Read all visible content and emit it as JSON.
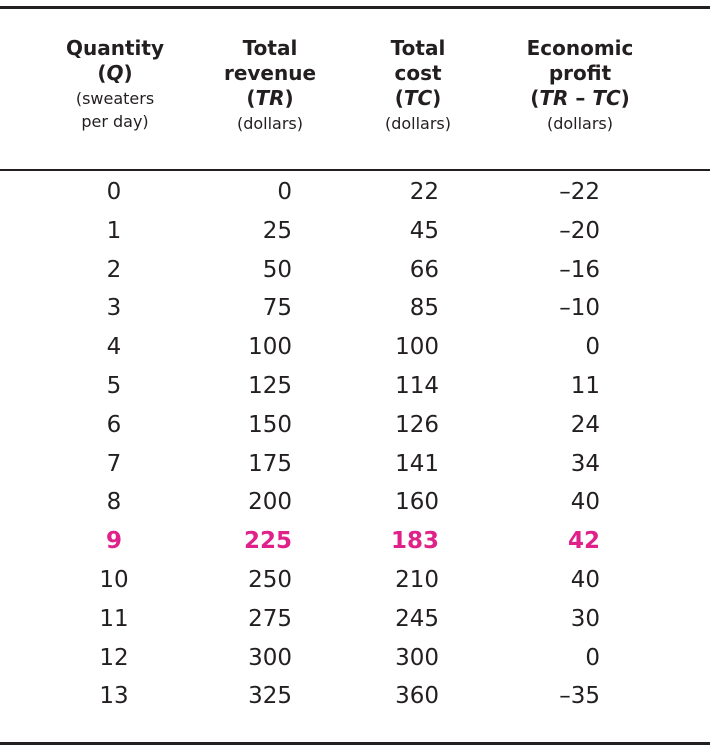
{
  "headers": {
    "quantity": {
      "line1": "Quantity",
      "line2_open": "(",
      "line2_var": "Q",
      "line2_close": ")",
      "line3": "(sweaters",
      "line4": "per day)"
    },
    "total_revenue": {
      "line1": "Total",
      "line2": "revenue",
      "line3_open": "(",
      "line3_var": "TR",
      "line3_close": ")",
      "line4": "(dollars)"
    },
    "total_cost": {
      "line1": "Total",
      "line2": "cost",
      "line3_open": "(",
      "line3_var": "TC",
      "line3_close": ")",
      "line4": "(dollars)"
    },
    "economic_profit": {
      "line1": "Economic",
      "line2": "profit",
      "line3_open": "(",
      "line3_var1": "TR",
      "line3_minus": " – ",
      "line3_var2": "TC",
      "line3_close": ")",
      "line4": "(dollars)"
    }
  },
  "rows": [
    {
      "q": "0",
      "tr": "0",
      "tc": "22",
      "profit": "–22"
    },
    {
      "q": "1",
      "tr": "25",
      "tc": "45",
      "profit": "–20"
    },
    {
      "q": "2",
      "tr": "50",
      "tc": "66",
      "profit": "–16"
    },
    {
      "q": "3",
      "tr": "75",
      "tc": "85",
      "profit": "–10"
    },
    {
      "q": "4",
      "tr": "100",
      "tc": "100",
      "profit": "0"
    },
    {
      "q": "5",
      "tr": "125",
      "tc": "114",
      "profit": "11"
    },
    {
      "q": "6",
      "tr": "150",
      "tc": "126",
      "profit": "24"
    },
    {
      "q": "7",
      "tr": "175",
      "tc": "141",
      "profit": "34"
    },
    {
      "q": "8",
      "tr": "200",
      "tc": "160",
      "profit": "40"
    },
    {
      "q": "9",
      "tr": "225",
      "tc": "183",
      "profit": "42"
    },
    {
      "q": "10",
      "tr": "250",
      "tc": "210",
      "profit": "40"
    },
    {
      "q": "11",
      "tr": "275",
      "tc": "245",
      "profit": "30"
    },
    {
      "q": "12",
      "tr": "300",
      "tc": "300",
      "profit": "0"
    },
    {
      "q": "13",
      "tr": "325",
      "tc": "360",
      "profit": "–35"
    }
  ],
  "highlight_row_index": 9,
  "colors": {
    "text": "#231f20",
    "highlight": "#e0218a",
    "rule": "#231f20",
    "background": "#ffffff"
  }
}
